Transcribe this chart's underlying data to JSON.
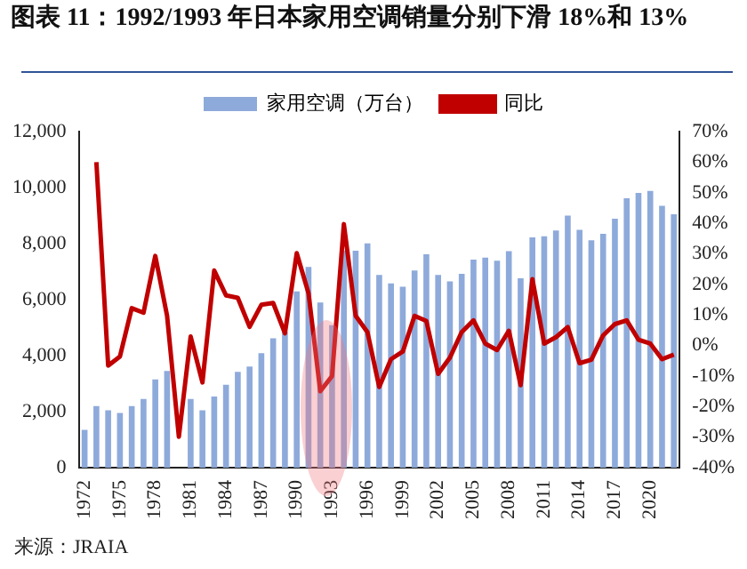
{
  "chart_data": {
    "type": "bar",
    "title": "图表 11：1992/1993 年日本家用空调销量分别下滑 18%和 13%",
    "categories": [
      "1972",
      null,
      null,
      "1975",
      null,
      null,
      "1978",
      null,
      null,
      "1981",
      null,
      null,
      "1984",
      null,
      null,
      "1987",
      null,
      null,
      "1990",
      null,
      null,
      "1993",
      null,
      null,
      "1996",
      null,
      null,
      "1999",
      null,
      null,
      "2002",
      null,
      null,
      "2005",
      null,
      null,
      "2008",
      null,
      null,
      "2011",
      null,
      null,
      "2014",
      null,
      null,
      "2017",
      null,
      null,
      "2020",
      null,
      null
    ],
    "series": [
      {
        "name": "家用空调（万台）",
        "color": "#8eaadb",
        "values": [
          1350,
          2200,
          2050,
          1950,
          2200,
          2450,
          3150,
          3450,
          null,
          2450,
          2050,
          2540,
          2960,
          3420,
          3610,
          4090,
          4620,
          4850,
          6290,
          7170,
          5900,
          5090,
          7750,
          7750,
          8010,
          6880,
          6580,
          6460,
          7040,
          7620,
          6880,
          6650,
          6920,
          7430,
          7500,
          7390,
          7730,
          6760,
          8220,
          8260,
          8470,
          9000,
          8490,
          8120,
          8350,
          8890,
          9620,
          9810,
          9880,
          9350,
          9050
        ]
      },
      {
        "name": "同比",
        "type": "line",
        "axis": "y2",
        "color": "#c00000",
        "values": [
          null,
          60,
          -6.6,
          -3.6,
          12.2,
          10.7,
          29.3,
          9.7,
          -29.9,
          2.9,
          -12.1,
          24.5,
          16.4,
          15.6,
          6.1,
          13.3,
          13.9,
          4,
          30.2,
          17.1,
          -15,
          -10,
          39.7,
          9.7,
          4.4,
          -13.6,
          -4.5,
          -2,
          9.7,
          8,
          -9.3,
          -4,
          4.4,
          8.2,
          0.6,
          -1.5,
          4.8,
          -13,
          21.7,
          0.6,
          2.7,
          6,
          -5.8,
          -4.7,
          3.3,
          7,
          8.2,
          1.9,
          0.6,
          -4.5,
          -3
        ]
      }
    ],
    "ylim": [
      0,
      12000
    ],
    "yticks": [
      0,
      {
        "value": 2000,
        "label": "2,000"
      },
      {
        "value": 4000,
        "label": "4,000"
      },
      {
        "value": 6000,
        "label": "6,000"
      },
      {
        "value": 8000,
        "label": "8,000"
      },
      {
        "value": 10000,
        "label": "10,000"
      },
      {
        "value": 12000,
        "label": "12,000"
      }
    ],
    "y2lim": [
      -40,
      70
    ],
    "y2ticks": [
      {
        "value": -40,
        "label": "-40%"
      },
      {
        "value": -30,
        "label": "-30%"
      },
      {
        "value": -20,
        "label": "-20%"
      },
      {
        "value": -10,
        "label": "-10%"
      },
      {
        "value": 0,
        "label": "0%"
      },
      {
        "value": 10,
        "label": "10%"
      },
      {
        "value": 20,
        "label": "20%"
      },
      {
        "value": 30,
        "label": "30%"
      },
      {
        "value": 40,
        "label": "40%"
      },
      {
        "value": 50,
        "label": "50%"
      },
      {
        "value": 60,
        "label": "60%"
      },
      {
        "value": 70,
        "label": "70%"
      }
    ],
    "grid": false,
    "legend": "top",
    "annotations": [
      "来源：JRAIA"
    ]
  }
}
